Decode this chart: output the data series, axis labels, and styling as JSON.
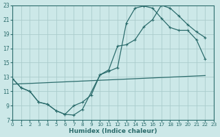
{
  "xlabel": "Humidex (Indice chaleur)",
  "background_color": "#cce8e8",
  "grid_color": "#aacccc",
  "line_color": "#2a6b6b",
  "xlim": [
    0,
    23
  ],
  "ylim": [
    7,
    23
  ],
  "xticks": [
    0,
    1,
    2,
    3,
    4,
    5,
    6,
    7,
    8,
    9,
    10,
    11,
    12,
    13,
    14,
    15,
    16,
    17,
    18,
    19,
    20,
    21,
    22,
    23
  ],
  "yticks": [
    7,
    9,
    11,
    13,
    15,
    17,
    19,
    21,
    23
  ],
  "curve1_x": [
    0,
    1,
    2,
    3,
    4,
    5,
    6,
    7,
    8,
    9,
    10,
    11,
    12,
    13,
    14,
    15,
    16,
    17,
    18,
    19,
    20,
    21,
    22
  ],
  "curve1_y": [
    12.8,
    11.5,
    11.0,
    9.5,
    9.2,
    8.3,
    7.8,
    9.0,
    9.5,
    10.5,
    13.3,
    14.0,
    17.3,
    17.5,
    18.2,
    20.0,
    21.0,
    23.0,
    22.6,
    21.5,
    20.3,
    19.3,
    18.5
  ],
  "curve2_x": [
    0,
    1,
    2,
    3,
    4,
    5,
    6,
    7,
    8,
    10,
    11,
    12,
    13,
    14,
    15,
    16,
    17,
    18,
    19,
    20,
    21,
    22
  ],
  "curve2_y": [
    12.8,
    11.5,
    11.0,
    9.5,
    9.2,
    8.3,
    7.8,
    7.7,
    8.5,
    13.3,
    13.8,
    14.3,
    20.5,
    22.6,
    22.9,
    22.6,
    21.2,
    19.9,
    19.5,
    19.5,
    18.2,
    15.5
  ],
  "line3_x": [
    0,
    22
  ],
  "line3_y": [
    12.0,
    13.2
  ]
}
